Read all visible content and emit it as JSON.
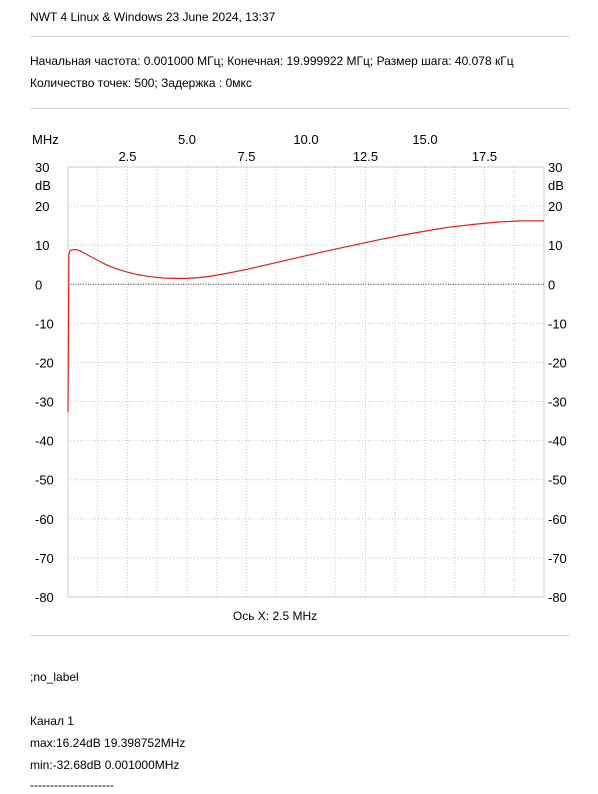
{
  "header": {
    "title": "NWT 4 Linux & Windows  23 June 2024, 13:37",
    "params_line1": "Начальная частота: 0.001000 МГц; Конечная: 19.999922 МГц; Размер шага: 40.078 кГц",
    "params_line2": "Количество точек:  500; Задержка :   0мкс"
  },
  "footer": {
    "label": ";no_label",
    "channel": "Канал 1",
    "max": "max:16.24dB 19.398752MHz",
    "min": "min:-32.68dB 0.001000MHz",
    "separator": "---------------------"
  },
  "chart_data": {
    "type": "line",
    "x_unit": "MHz",
    "y_unit": "dB",
    "xlabel": "Ось X: 2.5 MHz",
    "xlim": [
      0.001,
      20.0
    ],
    "ylim": [
      -80,
      30
    ],
    "x_ticks_top": [
      "5.0",
      "10.0",
      "15.0"
    ],
    "x_ticks_bottom": [
      "2.5",
      "7.5",
      "12.5",
      "17.5"
    ],
    "y_ticks": [
      "30",
      "20",
      "10",
      "0",
      "-10",
      "-20",
      "-30",
      "-40",
      "-50",
      "-60",
      "-70",
      "-80"
    ],
    "grid": true,
    "reference_line": 0,
    "series": [
      {
        "color": "#e02020",
        "x": [
          0.001,
          0.04,
          0.08,
          0.15,
          0.3,
          0.5,
          0.8,
          1.2,
          1.6,
          2.0,
          2.5,
          3.0,
          3.5,
          4.0,
          4.5,
          5.0,
          5.5,
          6.0,
          6.5,
          7.0,
          7.5,
          8.0,
          9.0,
          10.0,
          11.0,
          12.0,
          13.0,
          14.0,
          15.0,
          16.0,
          17.0,
          18.0,
          19.0,
          19.4,
          20.0
        ],
        "y": [
          -32.68,
          7.5,
          8.5,
          8.8,
          8.9,
          8.6,
          7.6,
          6.3,
          5.0,
          4.0,
          3.1,
          2.4,
          1.9,
          1.6,
          1.5,
          1.5,
          1.7,
          2.1,
          2.6,
          3.2,
          3.8,
          4.5,
          5.9,
          7.3,
          8.7,
          10.0,
          11.3,
          12.5,
          13.6,
          14.6,
          15.3,
          15.9,
          16.2,
          16.24,
          16.2
        ]
      }
    ]
  }
}
